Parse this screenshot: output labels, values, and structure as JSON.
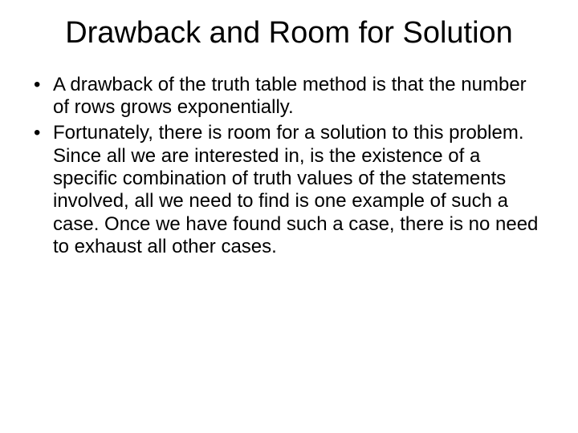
{
  "slide": {
    "title": "Drawback and Room for Solution",
    "bullets": [
      "A drawback of the truth table method is that the number of rows grows exponentially.",
      "Fortunately, there is room for a solution to this problem. Since all we are interested in, is the existence of a specific combination of truth values of the statements involved, all we need to find is one example of such a case. Once we have found such a case, there is no need to exhaust all other cases."
    ]
  },
  "style": {
    "background_color": "#ffffff",
    "text_color": "#000000",
    "title_fontsize": 38,
    "body_fontsize": 24,
    "font_family": "Arial"
  }
}
